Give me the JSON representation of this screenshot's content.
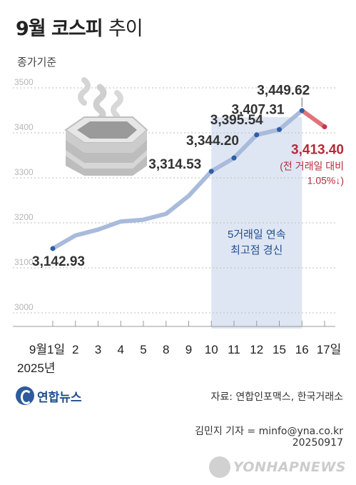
{
  "header": {
    "title_bold": "9월 코스피",
    "title_light": "추이",
    "subtitle": "종가기준"
  },
  "chart_data": {
    "type": "line",
    "ylim": [
      3000,
      3500
    ],
    "yticks": [
      "3500",
      "3400",
      "3300",
      "3200",
      "3100",
      "3000"
    ],
    "ytick_values": [
      3500,
      3400,
      3300,
      3200,
      3100,
      3000
    ],
    "categories": [
      "9월 1일",
      "2",
      "3",
      "4",
      "5",
      "8",
      "9",
      "10",
      "11",
      "12",
      "15",
      "16",
      "17일"
    ],
    "x_tick_labels": [
      "9월1일",
      "2",
      "3",
      "4",
      "5",
      "8",
      "9",
      "10",
      "11",
      "12",
      "15",
      "16",
      "17일"
    ],
    "year_label": "2025년",
    "values": [
      3142.93,
      3172,
      3185,
      3203,
      3207,
      3220,
      3260,
      3314.53,
      3344.2,
      3395.54,
      3407.31,
      3449.62,
      3413.4
    ],
    "data_labels": [
      {
        "index": 0,
        "text": "3,142.93"
      },
      {
        "index": 7,
        "text": "3,314.53"
      },
      {
        "index": 8,
        "text": "3,344.20"
      },
      {
        "index": 9,
        "text": "3,395.54"
      },
      {
        "index": 10,
        "text": "3,407.31"
      },
      {
        "index": 11,
        "text": "3,449.62"
      }
    ],
    "last_value_label": "3,413.40",
    "last_value_note_1": "(전 거래일 대비",
    "last_value_note_2": "1.05%↓)",
    "highlight_range": [
      7,
      11
    ],
    "highlight_label_1": "5거래일 연속",
    "highlight_label_2": "최고점 경신",
    "colors": {
      "line": "#a9bbdc",
      "marker": "#2e5da8",
      "down": "#e0737b",
      "down_marker": "#c13a4a",
      "highlight": "#dfe6f3",
      "down_text": "#b52a3a",
      "grid": "#bdbdbd"
    }
  },
  "footer": {
    "source": "자료: 연합인포맥스, 한국거래소",
    "reporter": "김민지 기자 = minfo@yna.co.kr",
    "date": "20250917",
    "logo": "연합뉴스",
    "watermark": "YONHAPNEWS"
  }
}
